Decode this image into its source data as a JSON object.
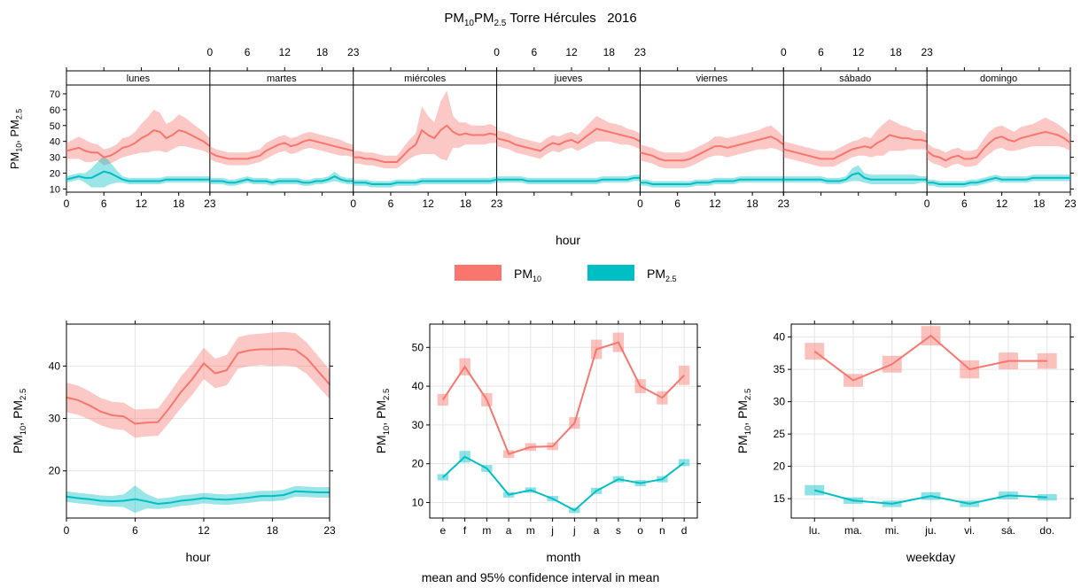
{
  "title": {
    "main": "PM",
    "sub1": "10",
    "mid": "PM",
    "sub2": "2.5",
    "rest": " Torre Hércules   2016"
  },
  "caption": "mean and 95% confidence interval in mean",
  "ylabel": {
    "a": "PM",
    "asub": "10",
    "sep": ", PM",
    "bsub": "2.5"
  },
  "colors": {
    "pm10": "#F8766D",
    "pm25": "#00BFC4"
  },
  "legend": [
    {
      "label": "PM",
      "sub": "10"
    },
    {
      "label": "PM",
      "sub": "2.5"
    }
  ],
  "chart_data": [
    {
      "type": "line",
      "name": "hour-weekday panel",
      "xlabel": "hour",
      "xticks": [
        0,
        6,
        12,
        18,
        23
      ],
      "ylim": [
        8,
        75
      ],
      "yticks": [
        10,
        20,
        30,
        40,
        50,
        60,
        70
      ],
      "x": [
        0,
        1,
        2,
        3,
        4,
        5,
        6,
        7,
        8,
        9,
        10,
        11,
        12,
        13,
        14,
        15,
        16,
        17,
        18,
        19,
        20,
        21,
        22,
        23
      ],
      "panels": [
        {
          "day": "lunes",
          "pm10": [
            34,
            35,
            36,
            34,
            33,
            33,
            30,
            31,
            33,
            36,
            37,
            39,
            42,
            44,
            47,
            46,
            42,
            44,
            47,
            46,
            44,
            42,
            40,
            37
          ],
          "pm10_ci": [
            5,
            6,
            7,
            7,
            6,
            5,
            5,
            5,
            5,
            6,
            6,
            7,
            9,
            11,
            13,
            12,
            9,
            9,
            10,
            9,
            8,
            7,
            6,
            5
          ],
          "pm25": [
            16,
            17,
            18,
            17,
            17,
            19,
            21,
            20,
            18,
            16,
            15,
            15,
            15,
            15,
            15,
            15,
            16,
            16,
            16,
            16,
            16,
            16,
            16,
            16
          ],
          "pm25_ci": [
            2,
            2,
            2,
            3,
            6,
            8,
            10,
            7,
            4,
            2,
            2,
            2,
            2,
            2,
            2,
            2,
            2,
            2,
            2,
            2,
            2,
            2,
            2,
            2
          ]
        },
        {
          "day": "martes",
          "pm10": [
            33,
            31,
            30,
            29,
            29,
            29,
            29,
            30,
            31,
            34,
            36,
            38,
            39,
            37,
            38,
            40,
            41,
            40,
            39,
            38,
            37,
            36,
            35,
            34
          ],
          "pm10_ci": [
            4,
            4,
            4,
            4,
            4,
            4,
            4,
            4,
            4,
            5,
            5,
            5,
            5,
            5,
            5,
            5,
            5,
            5,
            5,
            5,
            5,
            5,
            4,
            4
          ],
          "pm25": [
            15,
            15,
            15,
            14,
            14,
            15,
            16,
            15,
            15,
            15,
            14,
            15,
            15,
            15,
            15,
            14,
            14,
            15,
            15,
            16,
            18,
            16,
            15,
            15
          ],
          "pm25_ci": [
            2,
            2,
            2,
            2,
            2,
            2,
            2,
            2,
            2,
            2,
            2,
            2,
            2,
            2,
            2,
            2,
            2,
            2,
            2,
            2,
            3,
            2,
            2,
            2
          ]
        },
        {
          "day": "miércoles",
          "pm10": [
            30,
            30,
            29,
            29,
            28,
            27,
            27,
            27,
            31,
            35,
            38,
            47,
            44,
            42,
            47,
            50,
            46,
            44,
            45,
            44,
            44,
            44,
            45,
            44
          ],
          "pm10_ci": [
            4,
            4,
            4,
            4,
            4,
            4,
            4,
            4,
            5,
            6,
            7,
            15,
            12,
            10,
            18,
            22,
            10,
            8,
            7,
            6,
            6,
            6,
            6,
            5
          ],
          "pm25": [
            14,
            14,
            14,
            13,
            13,
            13,
            13,
            14,
            14,
            14,
            14,
            15,
            15,
            15,
            15,
            15,
            15,
            15,
            15,
            15,
            15,
            15,
            15,
            16
          ],
          "pm25_ci": [
            2,
            2,
            2,
            2,
            2,
            2,
            2,
            2,
            2,
            2,
            2,
            2,
            2,
            2,
            2,
            2,
            2,
            2,
            2,
            2,
            2,
            2,
            2,
            2
          ]
        },
        {
          "day": "jueves",
          "pm10": [
            42,
            41,
            40,
            38,
            37,
            36,
            35,
            34,
            37,
            39,
            38,
            40,
            41,
            39,
            42,
            45,
            48,
            47,
            46,
            45,
            44,
            43,
            42,
            40
          ],
          "pm10_ci": [
            5,
            5,
            5,
            5,
            5,
            5,
            5,
            5,
            5,
            5,
            5,
            5,
            5,
            5,
            6,
            7,
            8,
            7,
            6,
            6,
            6,
            5,
            5,
            5
          ],
          "pm25": [
            16,
            16,
            16,
            16,
            16,
            15,
            15,
            15,
            15,
            15,
            15,
            15,
            15,
            15,
            15,
            15,
            15,
            16,
            16,
            16,
            16,
            16,
            17,
            17
          ],
          "pm25_ci": [
            2,
            2,
            2,
            2,
            2,
            2,
            2,
            2,
            2,
            2,
            2,
            2,
            2,
            2,
            2,
            2,
            2,
            2,
            2,
            2,
            2,
            2,
            2,
            2
          ]
        },
        {
          "day": "viernes",
          "pm10": [
            33,
            32,
            31,
            29,
            28,
            28,
            28,
            28,
            29,
            31,
            33,
            35,
            37,
            37,
            36,
            37,
            38,
            39,
            40,
            41,
            42,
            43,
            41,
            38
          ],
          "pm10_ci": [
            5,
            5,
            5,
            5,
            5,
            5,
            5,
            5,
            5,
            5,
            5,
            5,
            6,
            6,
            6,
            6,
            6,
            6,
            6,
            6,
            7,
            7,
            6,
            5
          ],
          "pm25": [
            14,
            14,
            13,
            13,
            13,
            13,
            13,
            13,
            13,
            14,
            14,
            14,
            15,
            15,
            15,
            15,
            16,
            16,
            16,
            16,
            16,
            16,
            16,
            16
          ],
          "pm25_ci": [
            2,
            2,
            2,
            2,
            2,
            2,
            2,
            2,
            2,
            2,
            2,
            2,
            2,
            2,
            2,
            2,
            2,
            2,
            2,
            2,
            2,
            2,
            2,
            2
          ]
        },
        {
          "day": "sábado",
          "pm10": [
            35,
            34,
            33,
            32,
            31,
            30,
            29,
            29,
            29,
            31,
            33,
            35,
            36,
            37,
            36,
            39,
            41,
            44,
            43,
            42,
            42,
            41,
            41,
            40
          ],
          "pm10_ci": [
            5,
            5,
            5,
            5,
            5,
            5,
            5,
            5,
            5,
            5,
            5,
            5,
            5,
            6,
            6,
            8,
            10,
            10,
            9,
            8,
            7,
            6,
            6,
            5
          ],
          "pm25": [
            16,
            16,
            16,
            16,
            16,
            16,
            16,
            15,
            15,
            15,
            16,
            19,
            20,
            17,
            16,
            16,
            16,
            16,
            16,
            16,
            16,
            16,
            16,
            16
          ],
          "pm25_ci": [
            2,
            2,
            2,
            2,
            2,
            2,
            2,
            2,
            2,
            2,
            2,
            4,
            5,
            3,
            3,
            3,
            3,
            3,
            3,
            3,
            3,
            3,
            2,
            2
          ],
          "pm10_lo_override": null
        },
        {
          "day": "domingo",
          "pm10": [
            34,
            31,
            30,
            28,
            30,
            31,
            29,
            29,
            30,
            35,
            39,
            42,
            43,
            41,
            40,
            42,
            43,
            44,
            45,
            46,
            45,
            44,
            42,
            39
          ],
          "pm10_ci": [
            5,
            5,
            5,
            5,
            5,
            5,
            5,
            5,
            5,
            6,
            7,
            7,
            7,
            7,
            6,
            7,
            7,
            7,
            8,
            9,
            8,
            7,
            6,
            5
          ],
          "pm25": [
            14,
            14,
            13,
            13,
            13,
            13,
            13,
            14,
            14,
            15,
            16,
            17,
            16,
            16,
            16,
            16,
            16,
            17,
            17,
            17,
            17,
            17,
            17,
            17
          ],
          "pm25_ci": [
            2,
            2,
            2,
            2,
            2,
            2,
            2,
            2,
            2,
            2,
            2,
            2,
            2,
            2,
            2,
            2,
            2,
            2,
            2,
            2,
            2,
            2,
            2,
            2
          ]
        }
      ]
    },
    {
      "type": "line",
      "name": "hour panel",
      "xlabel": "hour",
      "xticks": [
        0,
        6,
        12,
        18,
        23
      ],
      "xlim": [
        0,
        23
      ],
      "ylim": [
        11,
        48
      ],
      "yticks": [
        20,
        30,
        40
      ],
      "x": [
        0,
        1,
        2,
        3,
        4,
        5,
        6,
        7,
        8,
        9,
        10,
        11,
        12,
        13,
        14,
        15,
        16,
        17,
        18,
        19,
        20,
        21,
        22,
        23
      ],
      "pm10": [
        34,
        33.5,
        32.5,
        31.3,
        30.6,
        30.4,
        29,
        29.2,
        29.3,
        32,
        35,
        37.5,
        40.5,
        38.6,
        39.2,
        42.5,
        43,
        43.2,
        43.2,
        43.3,
        43.1,
        41.5,
        39,
        36.5
      ],
      "pm10_ci": [
        2.8,
        2.8,
        2.7,
        2.6,
        2.6,
        2.6,
        2.7,
        2.6,
        2.6,
        2.8,
        3,
        3,
        3,
        2.8,
        2.9,
        3,
        3,
        3,
        3.2,
        3.2,
        3.2,
        3,
        2.9,
        2.8
      ],
      "pm25": [
        15.1,
        14.8,
        14.6,
        14.3,
        14.2,
        14.3,
        14.6,
        14.2,
        13.7,
        13.9,
        14.3,
        14.5,
        14.8,
        14.6,
        14.5,
        14.7,
        14.9,
        15.2,
        15.2,
        15.4,
        16.1,
        16,
        15.9,
        15.9
      ],
      "pm25_ci": [
        1,
        1,
        1,
        1,
        1,
        1.2,
        2.6,
        1.4,
        1,
        1,
        1,
        1,
        1,
        1,
        1,
        1,
        1,
        1,
        1,
        1,
        1,
        1,
        1,
        1
      ]
    },
    {
      "type": "line",
      "name": "month panel",
      "xlabel": "month",
      "categories": [
        "e",
        "f",
        "m",
        "a",
        "m",
        "j",
        "j",
        "a",
        "s",
        "o",
        "n",
        "d"
      ],
      "ylim": [
        6,
        56
      ],
      "yticks": [
        10,
        20,
        30,
        40,
        50
      ],
      "pm10": [
        36.5,
        45,
        36.5,
        22.5,
        24.3,
        24.5,
        30.5,
        49.5,
        51.3,
        40,
        37,
        42.8
      ],
      "pm10_ci": [
        1.5,
        2.2,
        1.7,
        1,
        1,
        1,
        1.5,
        2.5,
        2.5,
        1.8,
        1.7,
        2.5
      ],
      "pm25": [
        16.5,
        21.8,
        18.8,
        12,
        13.2,
        11,
        8,
        13,
        16,
        15,
        16,
        20.3
      ],
      "pm25_ci": [
        0.8,
        1.5,
        0.9,
        0.7,
        0.7,
        0.7,
        0.7,
        0.8,
        0.8,
        0.8,
        0.8,
        0.9
      ]
    },
    {
      "type": "line",
      "name": "weekday panel",
      "xlabel": "weekday",
      "categories": [
        "lu.",
        "ma.",
        "mi.",
        "ju.",
        "vi.",
        "sá.",
        "do."
      ],
      "ylim": [
        12,
        42
      ],
      "yticks": [
        15,
        20,
        25,
        30,
        35,
        40
      ],
      "pm10": [
        37.8,
        33.3,
        35.8,
        40.2,
        35,
        36.3,
        36.3
      ],
      "pm10_ci": [
        1.3,
        1,
        1.3,
        1.5,
        1.4,
        1.3,
        1.2
      ],
      "pm25": [
        16.3,
        14.7,
        14.2,
        15.4,
        14.2,
        15.5,
        15.2
      ],
      "pm25_ci": [
        0.8,
        0.5,
        0.5,
        0.6,
        0.5,
        0.6,
        0.5
      ]
    }
  ]
}
